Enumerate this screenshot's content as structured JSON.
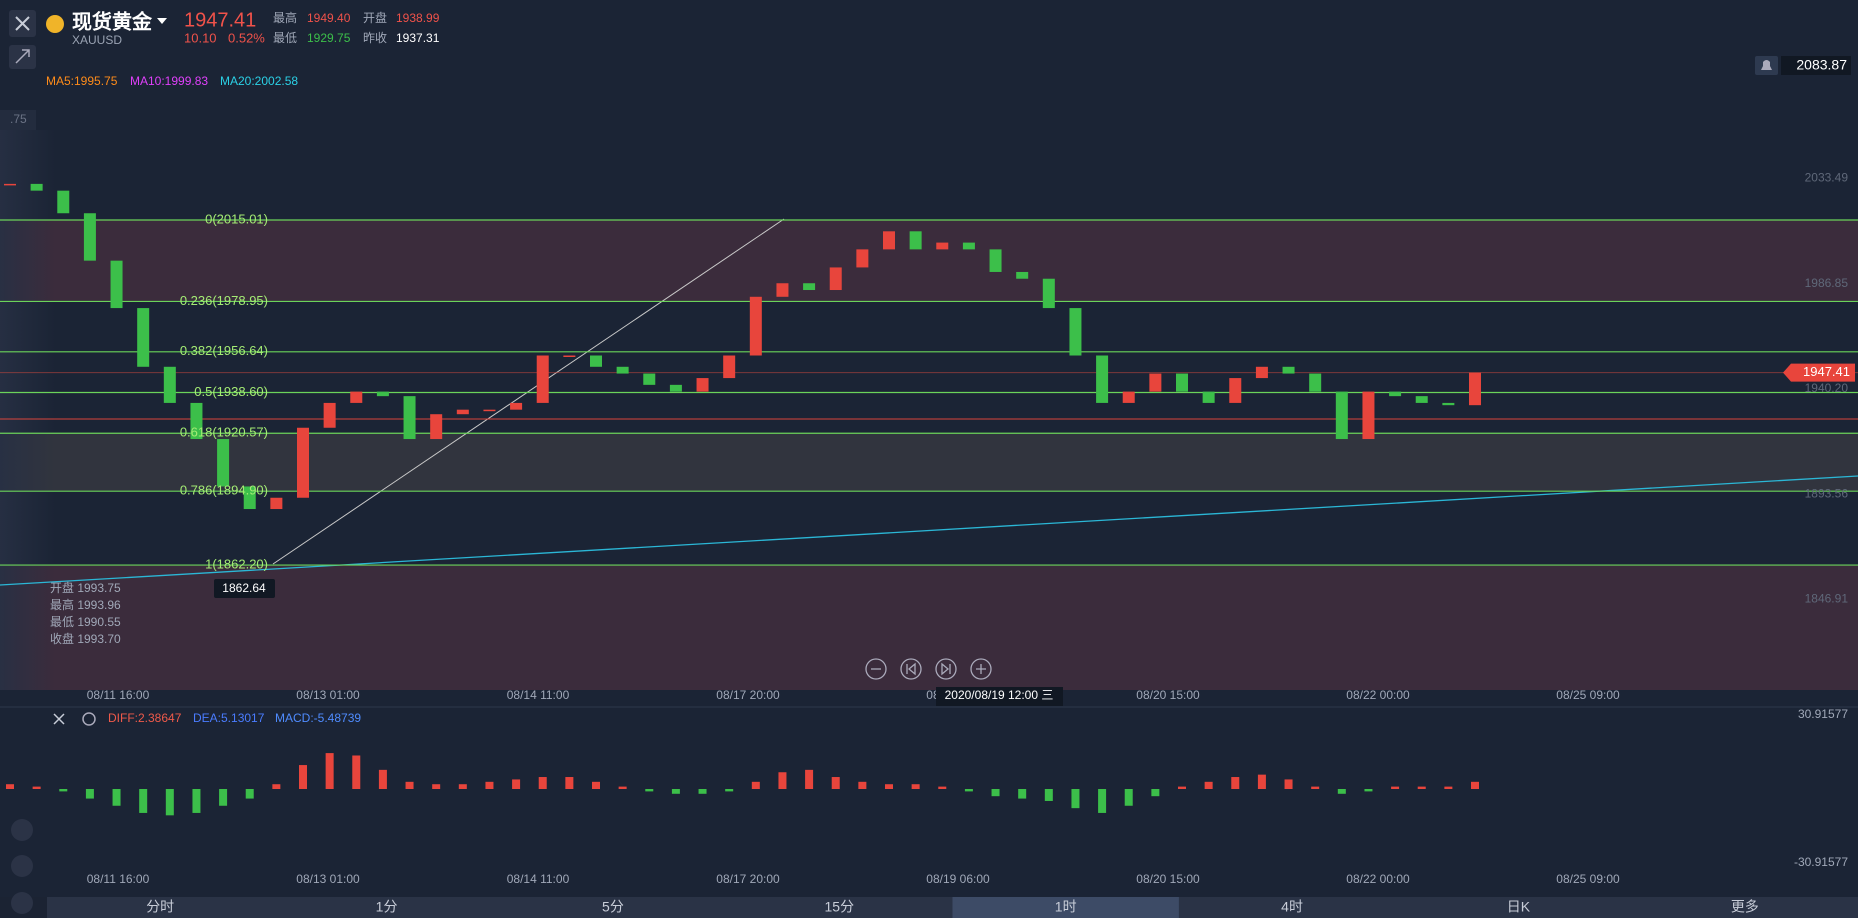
{
  "header": {
    "name": "现货黄金",
    "symbol": "XAUUSD",
    "change": "10.10",
    "change_pct": "0.52%",
    "high_label": "最高",
    "high": "1949.40",
    "open_label": "开盘",
    "open": "1938.99",
    "low_label": "最低",
    "low": "1929.75",
    "prev_label": "昨收",
    "prev": "1937.31"
  },
  "current_price": 1947.41,
  "ma": [
    "MA5:1995.75",
    "MA10:1999.83",
    "MA20:2002.58"
  ],
  "top_price": 2083.87,
  "left_clip": ".75",
  "price_ylim": [
    1799.33,
    2112.44
  ],
  "price_axis": [
    2033.49,
    1986.85,
    {
      "value": 1940.2,
      "label": "1940.20"
    },
    1893.56,
    1846.91
  ],
  "fib_levels": [
    {
      "value": 2015.01,
      "label": "0(2015.01)"
    },
    {
      "value": 1978.95,
      "label": "0.236(1978.95)"
    },
    {
      "value": 1956.64,
      "label": "0.382(1956.64)"
    },
    {
      "value": 1938.6,
      "label": "0.5(1938.60)"
    },
    {
      "value": 1920.57,
      "label": "0.618(1920.57)"
    },
    {
      "value": 1894.9,
      "label": "0.786(1894.90)"
    },
    {
      "value": 1862.2,
      "label": "1(1862.20)"
    }
  ],
  "low_marker": "1862.64",
  "bar_info": [
    "开盘 1993.75",
    "最高 1993.96",
    "最低 1990.55",
    "收盘 1993.70"
  ],
  "candles": [
    2031,
    2028,
    2018,
    1997,
    1976,
    1950,
    1934,
    1918,
    1897,
    1887,
    1892,
    1923,
    1934,
    1939,
    1937,
    1918,
    1929,
    1931,
    1931,
    1934,
    1955,
    1955,
    1950,
    1947,
    1942,
    1939,
    1945,
    1955,
    1981,
    1987,
    1984,
    1994,
    2002,
    2010,
    2002,
    2005,
    2002,
    1992,
    1989,
    1976,
    1955,
    1934,
    1939,
    1947,
    1939,
    1934,
    1945,
    1950,
    1947,
    1939,
    1918,
    1939,
    1937,
    1934,
    1933,
    1947.41
  ],
  "time_labels": [
    "08/11 16:00",
    "08/13 01:00",
    "08/14 11:00",
    "08/17 20:00",
    "08/19 06:00",
    "08/20 15:00",
    "08/22 00:00",
    "08/25 09:00"
  ],
  "crosshair_time": "2020/08/19 12:00 三",
  "macd": {
    "labels": [
      "DIFF:2.38647",
      "DEA:5.13017",
      "MACD:-5.48739"
    ],
    "ylim": [
      -30.91577,
      30.91577
    ],
    "yticks": [
      30.91577,
      -30.91577
    ],
    "histogram": [
      2,
      1,
      -1,
      -4,
      -7,
      -10,
      -11,
      -10,
      -7,
      -4,
      2,
      10,
      15,
      14,
      8,
      3,
      2,
      2,
      3,
      4,
      5,
      5,
      3,
      1,
      -1,
      -2,
      -2,
      -1,
      3,
      7,
      8,
      5,
      3,
      2,
      2,
      1,
      -1,
      -3,
      -4,
      -5,
      -8,
      -10,
      -7,
      -3,
      1,
      3,
      5,
      6,
      4,
      1,
      -2,
      -1,
      1,
      1,
      1,
      3
    ]
  },
  "tabs": {
    "items": [
      "分时",
      "1分",
      "5分",
      "15分",
      "1时",
      "4时",
      "日K",
      "更多"
    ],
    "selected": 4
  }
}
